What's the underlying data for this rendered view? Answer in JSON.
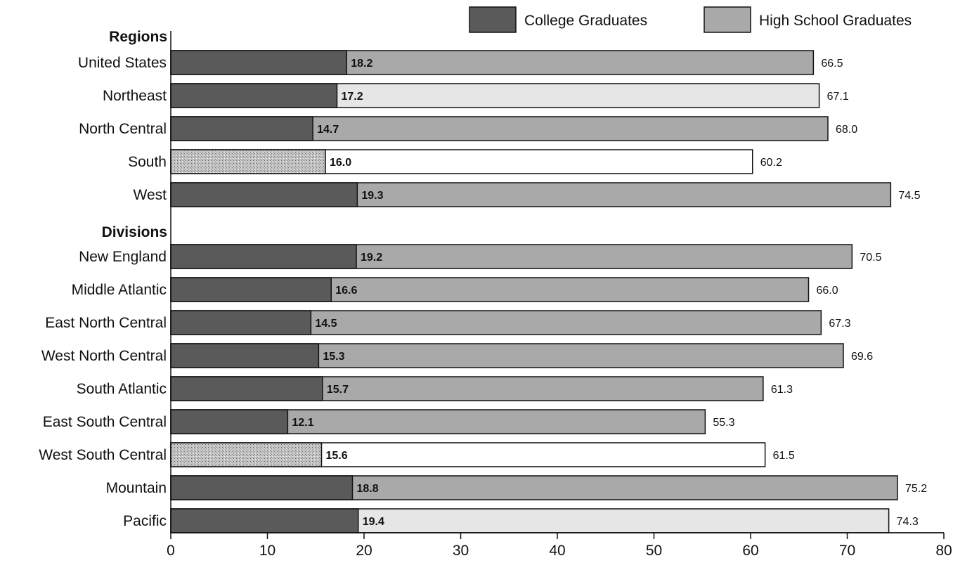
{
  "chart_data": {
    "type": "bar",
    "orientation": "horizontal",
    "layout": "overlapped",
    "xlim": [
      0,
      80
    ],
    "xticks": [
      "0",
      "10",
      "20",
      "30",
      "40",
      "50",
      "60",
      "70",
      "80"
    ],
    "grid": false,
    "legend_position": "top-right",
    "groups": [
      {
        "label": "Regions",
        "rows": [
          {
            "category": "United States",
            "college": 18.2,
            "college_label": "18.2",
            "hs": 66.5,
            "hs_label": "66.5",
            "style": "dark"
          },
          {
            "category": "Northeast",
            "college": 17.2,
            "college_label": "17.2",
            "hs": 67.1,
            "hs_label": "67.1",
            "style": "dark-light"
          },
          {
            "category": "North Central",
            "college": 14.7,
            "college_label": "14.7",
            "hs": 68.0,
            "hs_label": "68.0",
            "style": "dark"
          },
          {
            "category": "South",
            "college": 16.0,
            "college_label": "16.0",
            "hs": 60.2,
            "hs_label": "60.2",
            "style": "stipple-white"
          },
          {
            "category": "West",
            "college": 19.3,
            "college_label": "19.3",
            "hs": 74.5,
            "hs_label": "74.5",
            "style": "dark"
          }
        ]
      },
      {
        "label": "Divisions",
        "rows": [
          {
            "category": "New England",
            "college": 19.2,
            "college_label": "19.2",
            "hs": 70.5,
            "hs_label": "70.5",
            "style": "dark"
          },
          {
            "category": "Middle Atlantic",
            "college": 16.6,
            "college_label": "16.6",
            "hs": 66.0,
            "hs_label": "66.0",
            "style": "dark"
          },
          {
            "category": "East North Central",
            "college": 14.5,
            "college_label": "14.5",
            "hs": 67.3,
            "hs_label": "67.3",
            "style": "dark"
          },
          {
            "category": "West North Central",
            "college": 15.3,
            "college_label": "15.3",
            "hs": 69.6,
            "hs_label": "69.6",
            "style": "dark"
          },
          {
            "category": "South Atlantic",
            "college": 15.7,
            "college_label": "15.7",
            "hs": 61.3,
            "hs_label": "61.3",
            "style": "dark"
          },
          {
            "category": "East South Central",
            "college": 12.1,
            "college_label": "12.1",
            "hs": 55.3,
            "hs_label": "55.3",
            "style": "dark"
          },
          {
            "category": "West South Central",
            "college": 15.6,
            "college_label": "15.6",
            "hs": 61.5,
            "hs_label": "61.5",
            "style": "stipple-white"
          },
          {
            "category": "Mountain",
            "college": 18.8,
            "college_label": "18.8",
            "hs": 75.2,
            "hs_label": "75.2",
            "style": "dark"
          },
          {
            "category": "Pacific",
            "college": 19.4,
            "college_label": "19.4",
            "hs": 74.3,
            "hs_label": "74.3",
            "style": "dark-light"
          }
        ]
      }
    ],
    "legend": [
      {
        "name": "College Graduates",
        "color": "#5a5a5a"
      },
      {
        "name": "High School Graduates",
        "color": "#a9a9a9"
      }
    ],
    "colors": {
      "college_dark": "#5a5a5a",
      "hs_medium": "#a9a9a9",
      "college_stipple": "#b8b8b8",
      "hs_light": "#e6e6e6",
      "hs_white": "#ffffff",
      "outline": "#111111"
    }
  }
}
